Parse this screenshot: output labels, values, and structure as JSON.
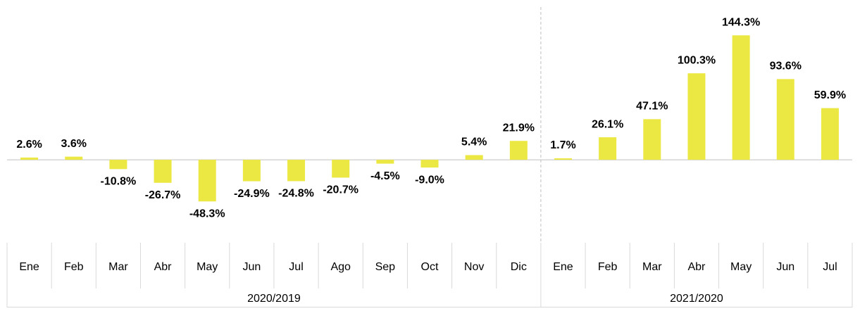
{
  "chart_data": {
    "type": "bar",
    "color": "#ece843",
    "ylim": [
      -60,
      160
    ],
    "groups": [
      {
        "name": "2020/2019",
        "categories": [
          "Ene",
          "Feb",
          "Mar",
          "Abr",
          "May",
          "Jun",
          "Jul",
          "Ago",
          "Sep",
          "Oct",
          "Nov",
          "Dic"
        ],
        "values": [
          2.6,
          3.6,
          -10.8,
          -26.7,
          -48.3,
          -24.9,
          -24.8,
          -20.7,
          -4.5,
          -9.0,
          5.4,
          21.9
        ],
        "value_labels": [
          "2.6%",
          "3.6%",
          "-10.8%",
          "-26.7%",
          "-48.3%",
          "-24.9%",
          "-24.8%",
          "-20.7%",
          "-4.5%",
          "-9.0%",
          "5.4%",
          "21.9%"
        ]
      },
      {
        "name": "2021/2020",
        "categories": [
          "Ene",
          "Feb",
          "Mar",
          "Abr",
          "May",
          "Jun",
          "Jul"
        ],
        "values": [
          1.7,
          26.1,
          47.1,
          100.3,
          144.3,
          93.6,
          59.9
        ],
        "value_labels": [
          "1.7%",
          "26.1%",
          "47.1%",
          "100.3%",
          "144.3%",
          "93.6%",
          "59.9%"
        ]
      }
    ]
  }
}
